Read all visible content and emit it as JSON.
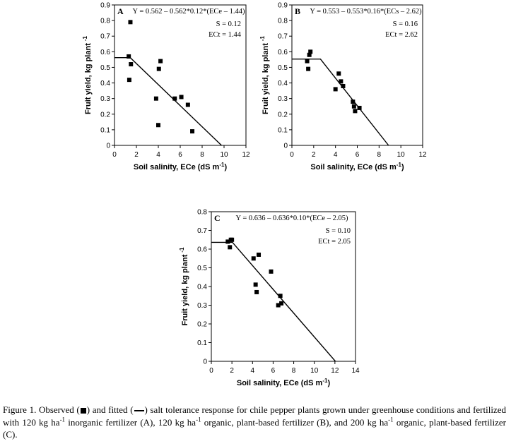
{
  "chart_data": [
    {
      "type": "scatter",
      "panel": "A",
      "xlabel": "Soil salinity, ECe (dS m",
      "xlabel_sup": "-1",
      "xlabel_close": ")",
      "ylabel": "Fruit yield, kg plant",
      "ylabel_sup": "-1",
      "xlim": [
        0,
        12
      ],
      "ylim": [
        0,
        0.9
      ],
      "xticks": [
        "0",
        "2",
        "4",
        "6",
        "8",
        "10",
        "12"
      ],
      "yticks": [
        "0",
        "0.1",
        "0.2",
        "0.3",
        "0.4",
        "0.5",
        "0.6",
        "0.7",
        "0.8",
        "0.9"
      ],
      "equation": "Y = 0.562 – 0.562*0.12*(ECe – 1.44)",
      "s_label": "S = 0.12",
      "ect_label": "ECt = 1.44",
      "fit_line": {
        "x": [
          0,
          1.44,
          9.77
        ],
        "y": [
          0.562,
          0.562,
          0
        ]
      },
      "points": {
        "x": [
          1.3,
          1.35,
          1.45,
          1.5,
          3.8,
          4.0,
          4.05,
          4.2,
          5.5,
          6.1,
          6.7,
          7.1
        ],
        "y": [
          0.57,
          0.42,
          0.79,
          0.52,
          0.3,
          0.13,
          0.49,
          0.54,
          0.3,
          0.31,
          0.26,
          0.09
        ]
      }
    },
    {
      "type": "scatter",
      "panel": "B",
      "xlabel": "Soil salinity, ECe (dS m",
      "xlabel_sup": "-1",
      "xlabel_close": ")",
      "ylabel": "Fruit yield, kg plant",
      "ylabel_sup": "-1",
      "xlim": [
        0,
        12
      ],
      "ylim": [
        0,
        0.9
      ],
      "xticks": [
        "0",
        "2",
        "4",
        "6",
        "8",
        "10",
        "12"
      ],
      "yticks": [
        "0",
        "0.1",
        "0.2",
        "0.3",
        "0.4",
        "0.5",
        "0.6",
        "0.7",
        "0.8",
        "0.9"
      ],
      "equation": "Y = 0.553 – 0.553*0.16*(ECs – 2.62)",
      "s_label": "S = 0.16",
      "ect_label": "ECt = 2.62",
      "fit_line": {
        "x": [
          0,
          2.62,
          8.87
        ],
        "y": [
          0.553,
          0.553,
          0
        ]
      },
      "points": {
        "x": [
          1.4,
          1.5,
          1.6,
          1.7,
          4.0,
          4.3,
          4.5,
          4.7,
          5.6,
          5.7,
          5.8,
          6.2
        ],
        "y": [
          0.54,
          0.49,
          0.58,
          0.6,
          0.36,
          0.46,
          0.41,
          0.38,
          0.28,
          0.25,
          0.22,
          0.24
        ]
      }
    },
    {
      "type": "scatter",
      "panel": "C",
      "xlabel": "Soil salinity, ECe (dS m",
      "xlabel_sup": "-1",
      "xlabel_close": ")",
      "ylabel": "Fruit yield, kg plant",
      "ylabel_sup": "-1",
      "xlim": [
        0,
        14
      ],
      "ylim": [
        0,
        0.8
      ],
      "xticks": [
        "0",
        "2",
        "4",
        "6",
        "8",
        "10",
        "12",
        "14"
      ],
      "yticks": [
        "0",
        "0.1",
        "0.2",
        "0.3",
        "0.4",
        "0.5",
        "0.6",
        "0.7",
        "0.8"
      ],
      "equation": "Y = 0.636 – 0.636*0.10*(ECe – 2.05)",
      "s_label": "S = 0.10",
      "ect_label": "ECt = 2.05",
      "fit_line": {
        "x": [
          0,
          2.05,
          12.05
        ],
        "y": [
          0.636,
          0.636,
          0
        ]
      },
      "points": {
        "x": [
          1.6,
          1.8,
          1.9,
          2.0,
          4.1,
          4.3,
          4.4,
          4.6,
          5.8,
          6.5,
          6.7,
          6.8
        ],
        "y": [
          0.64,
          0.61,
          0.65,
          0.65,
          0.55,
          0.41,
          0.37,
          0.57,
          0.48,
          0.3,
          0.35,
          0.31
        ]
      }
    }
  ],
  "caption": {
    "part1": "Figure 1. Observed (",
    "part2": ") and fitted (",
    "part3": ") salt tolerance response for chile pepper plants grown under greenhouse conditions and fertilized with 120 kg ha",
    "sup1": "-1",
    "part4": " inorganic fertilizer (A), 120 kg ha",
    "sup2": "-1",
    "part5": " organic, plant-based fertilizer (B), and 200 kg ha",
    "sup3": "-1",
    "part6": " organic, plant-based fertilizer (C)."
  }
}
